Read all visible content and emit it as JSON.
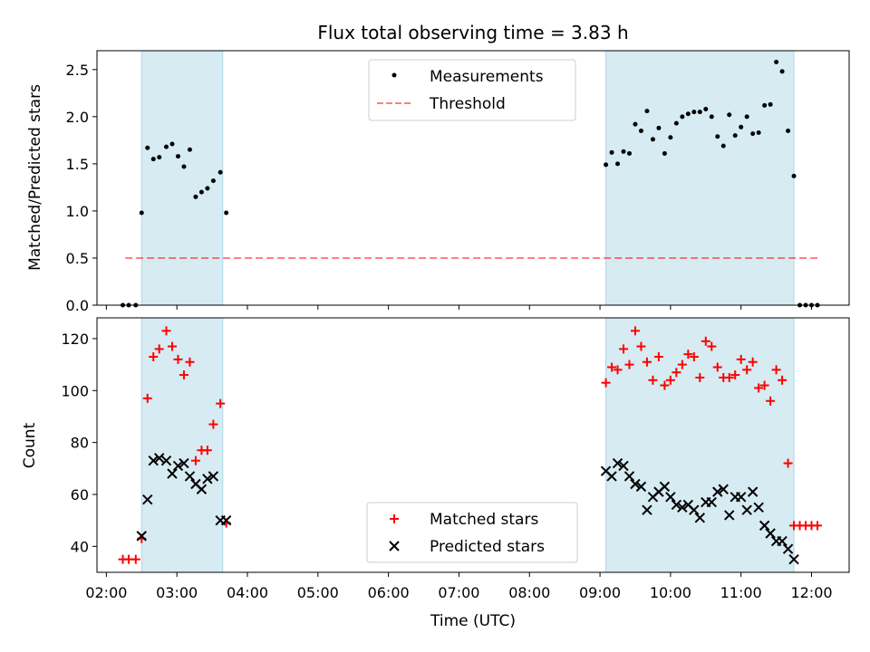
{
  "title": "Flux total observing time = 3.83 h",
  "colors": {
    "shade": "#add8e6",
    "threshold": "#ff0000",
    "matched": "#ff0000",
    "predicted": "#000000",
    "measurement": "#000000"
  },
  "chart_data": [
    {
      "type": "scatter",
      "ylabel": "Matched/Predicted stars",
      "xlim": [
        "01:52",
        "12:32"
      ],
      "ylim": [
        0,
        2.7
      ],
      "yticks": [
        "0.0",
        "0.5",
        "1.0",
        "1.5",
        "2.0",
        "2.5"
      ],
      "shaded_intervals": [
        [
          "02:30",
          "03:39"
        ],
        [
          "09:05",
          "11:45"
        ]
      ],
      "legend": {
        "placement": "upper center",
        "entries": [
          "Measurements",
          "Threshold"
        ]
      },
      "threshold": {
        "name": "Threshold",
        "value": 0.5,
        "x_range": [
          "02:16",
          "12:06"
        ],
        "style": "dashed"
      },
      "series": [
        {
          "name": "Measurements",
          "x": [
            "02:14",
            "02:19",
            "02:25",
            "02:30",
            "02:35",
            "02:40",
            "02:45",
            "02:51",
            "02:56",
            "03:01",
            "03:06",
            "03:11",
            "03:16",
            "03:21",
            "03:26",
            "03:31",
            "03:37",
            "03:42",
            "09:05",
            "09:10",
            "09:15",
            "09:20",
            "09:25",
            "09:30",
            "09:35",
            "09:40",
            "09:45",
            "09:50",
            "09:55",
            "10:00",
            "10:05",
            "10:10",
            "10:15",
            "10:20",
            "10:25",
            "10:30",
            "10:35",
            "10:40",
            "10:45",
            "10:50",
            "10:55",
            "11:00",
            "11:05",
            "11:10",
            "11:15",
            "11:20",
            "11:25",
            "11:30",
            "11:35",
            "11:40",
            "11:45",
            "11:50",
            "11:55",
            "12:00",
            "12:05"
          ],
          "y": [
            0,
            0,
            0,
            0.98,
            1.67,
            1.55,
            1.57,
            1.68,
            1.71,
            1.58,
            1.47,
            1.65,
            1.15,
            1.2,
            1.24,
            1.32,
            1.41,
            0.98,
            1.49,
            1.62,
            1.5,
            1.63,
            1.61,
            1.92,
            1.85,
            2.06,
            1.76,
            1.88,
            1.61,
            1.78,
            1.93,
            2.0,
            2.03,
            2.05,
            2.05,
            2.08,
            2.0,
            1.79,
            1.69,
            2.02,
            1.8,
            1.89,
            2.0,
            1.82,
            1.83,
            2.12,
            2.13,
            2.58,
            2.48,
            1.85,
            1.37,
            0,
            0,
            0,
            0
          ]
        }
      ]
    },
    {
      "type": "scatter",
      "xlabel": "Time (UTC)",
      "ylabel": "Count",
      "xlim": [
        "01:52",
        "12:32"
      ],
      "ylim": [
        30,
        128
      ],
      "xticks": [
        "02:00",
        "03:00",
        "04:00",
        "05:00",
        "06:00",
        "07:00",
        "08:00",
        "09:00",
        "10:00",
        "11:00",
        "12:00"
      ],
      "yticks": [
        "40",
        "60",
        "80",
        "100",
        "120"
      ],
      "shaded_intervals": [
        [
          "02:30",
          "03:39"
        ],
        [
          "09:05",
          "11:45"
        ]
      ],
      "legend": {
        "placement": "lower center",
        "entries": [
          "Matched stars",
          "Predicted stars"
        ]
      },
      "series": [
        {
          "name": "Matched stars",
          "x": [
            "02:14",
            "02:19",
            "02:25",
            "02:30",
            "02:35",
            "02:40",
            "02:45",
            "02:51",
            "02:56",
            "03:01",
            "03:06",
            "03:11",
            "03:16",
            "03:21",
            "03:26",
            "03:31",
            "03:37",
            "03:42",
            "09:05",
            "09:10",
            "09:15",
            "09:20",
            "09:25",
            "09:30",
            "09:35",
            "09:40",
            "09:45",
            "09:50",
            "09:55",
            "10:00",
            "10:05",
            "10:10",
            "10:15",
            "10:20",
            "10:25",
            "10:30",
            "10:35",
            "10:40",
            "10:45",
            "10:50",
            "10:55",
            "11:00",
            "11:05",
            "11:10",
            "11:15",
            "11:20",
            "11:25",
            "11:30",
            "11:35",
            "11:40",
            "11:45",
            "11:50",
            "11:55",
            "12:00",
            "12:05"
          ],
          "y": [
            35,
            35,
            35,
            43,
            97,
            113,
            116,
            123,
            117,
            112,
            106,
            111,
            73,
            77,
            77,
            87,
            95,
            49,
            103,
            109,
            108,
            116,
            110,
            123,
            117,
            111,
            104,
            113,
            102,
            104,
            107,
            110,
            114,
            113,
            105,
            119,
            117,
            109,
            105,
            105,
            106,
            112,
            108,
            111,
            101,
            102,
            96,
            108,
            104,
            72,
            48,
            48,
            48,
            48,
            48
          ]
        },
        {
          "name": "Predicted stars",
          "x": [
            "02:30",
            "02:35",
            "02:40",
            "02:45",
            "02:51",
            "02:56",
            "03:01",
            "03:06",
            "03:11",
            "03:16",
            "03:21",
            "03:26",
            "03:31",
            "03:37",
            "03:42",
            "09:05",
            "09:10",
            "09:15",
            "09:20",
            "09:25",
            "09:30",
            "09:35",
            "09:40",
            "09:45",
            "09:50",
            "09:55",
            "10:00",
            "10:05",
            "10:10",
            "10:15",
            "10:20",
            "10:25",
            "10:30",
            "10:35",
            "10:40",
            "10:45",
            "10:50",
            "10:55",
            "11:00",
            "11:05",
            "11:10",
            "11:15",
            "11:20",
            "11:25",
            "11:30",
            "11:35",
            "11:40",
            "11:45"
          ],
          "y": [
            44,
            58,
            73,
            74,
            73,
            68,
            71,
            72,
            67,
            64,
            62,
            66,
            67,
            50,
            50,
            69,
            67,
            72,
            71,
            67,
            64,
            63,
            54,
            59,
            61,
            63,
            59,
            56,
            55,
            56,
            54,
            51,
            57,
            57,
            61,
            62,
            52,
            59,
            59,
            54,
            61,
            55,
            48,
            45,
            42,
            42,
            39,
            35
          ]
        }
      ]
    }
  ]
}
